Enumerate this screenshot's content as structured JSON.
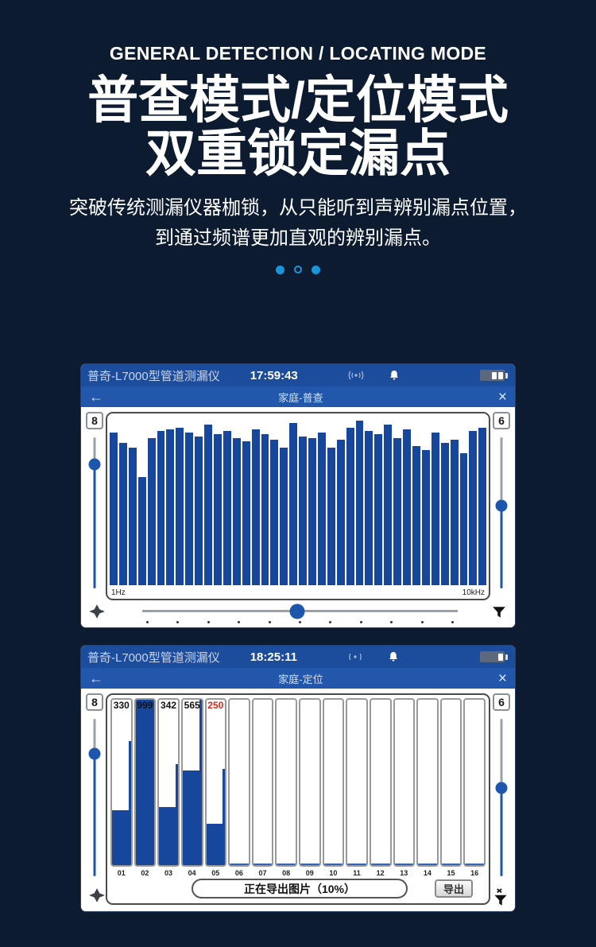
{
  "page": {
    "eyebrow": "GENERAL DETECTION / LOCATING MODE",
    "heading_line1": "普查模式/定位模式",
    "heading_line2": "双重锁定漏点",
    "subtitle_line1": "突破传统测漏仪器枷锁，从只能听到声辨别漏点位置，",
    "subtitle_line2": "到通过频谱更加直观的辨别漏点。",
    "accent_color": "#1896dc",
    "background_color": "#0d1b31",
    "carousel_dots": [
      {
        "filled": true
      },
      {
        "filled": false
      },
      {
        "filled": true
      }
    ]
  },
  "icons": {
    "back": "←",
    "close": "×",
    "signal": "signal-waves",
    "bell": "notification-bell",
    "battery": "battery",
    "move": "four-point-star",
    "filter": "funnel",
    "filter_off": "funnel-x"
  },
  "device1": {
    "title": "普奇-L7000型管道测漏仪",
    "time": "17:59:43",
    "battery_segments": 2,
    "nav": {
      "title": "家庭-普查"
    },
    "left_gain": "8",
    "right_gain": "6",
    "freq_min": "1Hz",
    "freq_max": "10kHz",
    "left_slider_pct": 18,
    "right_slider_pct": 45,
    "bottom_slider_pct": 49,
    "tick_dots": 11
  },
  "device2": {
    "title": "普奇-L7000型管道测漏仪",
    "time": "18:25:11",
    "battery_segments": 1,
    "nav": {
      "title": "家庭-定位"
    },
    "left_gain": "8",
    "right_gain": "6",
    "left_slider_pct": 22,
    "right_slider_pct": 44,
    "export_status": "正在导出图片（10%）",
    "export_button": "导出"
  },
  "chart_data": [
    {
      "type": "bar",
      "title": "家庭-普查 频谱 (spectrum, general detection mode)",
      "xlabel": "frequency",
      "x_min_label": "1Hz",
      "x_max_label": "10kHz",
      "ylim": [
        0,
        100
      ],
      "grid": false,
      "bar_color": "#17479c",
      "values_pct": [
        90,
        84,
        81,
        64,
        87,
        91,
        92,
        93,
        90,
        88,
        95,
        89,
        91,
        87,
        85,
        92,
        89,
        86,
        81,
        96,
        88,
        87,
        90,
        81,
        86,
        93,
        97,
        91,
        89,
        95,
        87,
        92,
        82,
        80,
        90,
        84,
        86,
        78,
        91,
        93
      ]
    },
    {
      "type": "bar",
      "title": "家庭-定位 频段柱状图 (locating mode bands)",
      "ylim": [
        0,
        999
      ],
      "grid": false,
      "bar_color": "#17479c",
      "columns": [
        {
          "label": "01",
          "value": "330",
          "value_color": "#111111",
          "bar_pct": 33,
          "peak_pct": 75
        },
        {
          "label": "02",
          "value": "999",
          "value_color": "#111111",
          "bar_pct": 100,
          "peak_pct": 100
        },
        {
          "label": "03",
          "value": "342",
          "value_color": "#111111",
          "bar_pct": 35,
          "peak_pct": 61
        },
        {
          "label": "04",
          "value": "565",
          "value_color": "#111111",
          "bar_pct": 57,
          "peak_pct": 100
        },
        {
          "label": "05",
          "value": "250",
          "value_color": "#e02418",
          "bar_pct": 25,
          "peak_pct": 58
        },
        {
          "label": "06",
          "value": "",
          "value_color": "#111111",
          "bar_pct": 0,
          "peak_pct": 0
        },
        {
          "label": "07",
          "value": "",
          "value_color": "#111111",
          "bar_pct": 0,
          "peak_pct": 0
        },
        {
          "label": "08",
          "value": "",
          "value_color": "#111111",
          "bar_pct": 0,
          "peak_pct": 0
        },
        {
          "label": "09",
          "value": "",
          "value_color": "#111111",
          "bar_pct": 0,
          "peak_pct": 0
        },
        {
          "label": "10",
          "value": "",
          "value_color": "#111111",
          "bar_pct": 0,
          "peak_pct": 0
        },
        {
          "label": "11",
          "value": "",
          "value_color": "#111111",
          "bar_pct": 0,
          "peak_pct": 0
        },
        {
          "label": "12",
          "value": "",
          "value_color": "#111111",
          "bar_pct": 0,
          "peak_pct": 0
        },
        {
          "label": "13",
          "value": "",
          "value_color": "#111111",
          "bar_pct": 0,
          "peak_pct": 0
        },
        {
          "label": "14",
          "value": "",
          "value_color": "#111111",
          "bar_pct": 0,
          "peak_pct": 0
        },
        {
          "label": "15",
          "value": "",
          "value_color": "#111111",
          "bar_pct": 0,
          "peak_pct": 0
        },
        {
          "label": "16",
          "value": "",
          "value_color": "#111111",
          "bar_pct": 0,
          "peak_pct": 0
        }
      ]
    }
  ]
}
